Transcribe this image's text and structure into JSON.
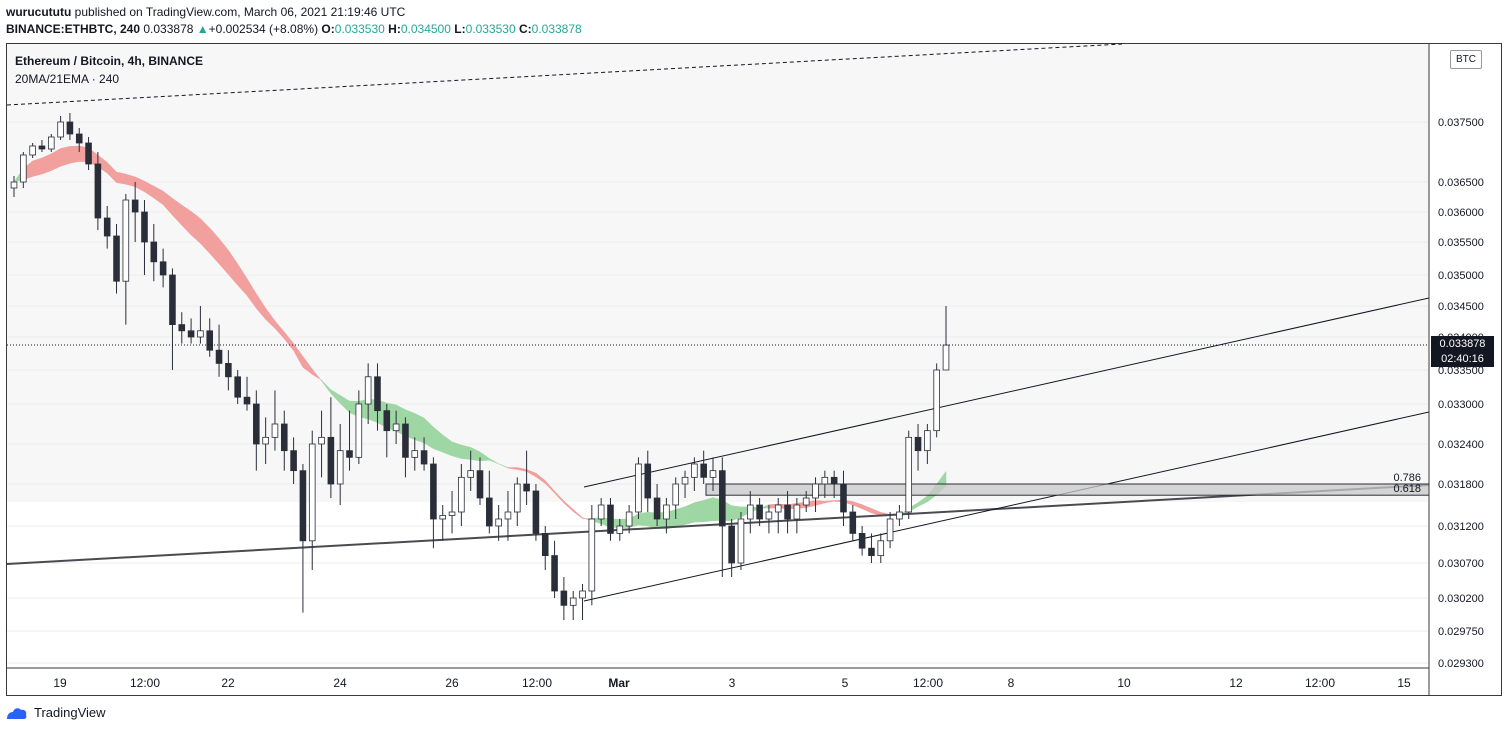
{
  "header": {
    "author": "wurucututu",
    "published_text": "published on TradingView.com, March 06, 2021 21:19:46 UTC",
    "symbol": "BINANCE:ETHBTC, 240",
    "last": "0.033878",
    "change": "+0.002534 (+8.08%)",
    "o_label": "O:",
    "o_value": "0.033530",
    "h_label": "H:",
    "h_value": "0.034500",
    "l_label": "L:",
    "l_value": "0.033530",
    "c_label": "C:",
    "c_value": "0.033878"
  },
  "legend": {
    "title": "Ethereum / Bitcoin, 4h, BINANCE",
    "indicator": "20MA/21EMA · 240"
  },
  "currency_badge": "BTC",
  "price_tag": {
    "price": "0.033878",
    "countdown": "02:40:16"
  },
  "footer": {
    "brand": "TradingView"
  },
  "colors": {
    "up": "#26a69a",
    "bull_candle": "#ffffff",
    "bear_candle": "#2a2e39",
    "cloud_green": "#9fd7a4",
    "cloud_red": "#f2a09e",
    "zone": "#c8c8c8"
  },
  "chart_data": {
    "type": "candlestick",
    "x_tick_labels": [
      "19",
      "12:00",
      "22",
      "24",
      "26",
      "12:00",
      "Mar",
      "3",
      "5",
      "12:00",
      "8",
      "10",
      "12",
      "12:00",
      "15"
    ],
    "y_tick_labels": [
      "0.037500",
      "0.036500",
      "0.036000",
      "0.035500",
      "0.035000",
      "0.034500",
      "0.034000",
      "0.033500",
      "0.033000",
      "0.032400",
      "0.031800",
      "0.031200",
      "0.030700",
      "0.030200",
      "0.029750",
      "0.029300"
    ],
    "y_tick_values": [
      0.0375,
      0.0365,
      0.036,
      0.0355,
      0.035,
      0.0345,
      0.034,
      0.0335,
      0.033,
      0.0324,
      0.0318,
      0.0312,
      0.0307,
      0.0302,
      0.02975,
      0.0293
    ],
    "fib_levels": [
      {
        "label": "0.786",
        "price": 0.0318
      },
      {
        "label": "0.618",
        "price": 0.03164
      }
    ],
    "current_price": 0.033878,
    "candles": [
      [
        0.0364,
        0.0366,
        0.03625,
        0.0365
      ],
      [
        0.0365,
        0.037,
        0.0364,
        0.03695
      ],
      [
        0.03695,
        0.03715,
        0.0369,
        0.0371
      ],
      [
        0.0371,
        0.0372,
        0.037,
        0.03705
      ],
      [
        0.03705,
        0.0373,
        0.037,
        0.03725
      ],
      [
        0.03725,
        0.0376,
        0.0372,
        0.0375
      ],
      [
        0.0375,
        0.03765,
        0.0372,
        0.0373
      ],
      [
        0.0373,
        0.0374,
        0.037,
        0.03715
      ],
      [
        0.03715,
        0.03725,
        0.0367,
        0.0368
      ],
      [
        0.0368,
        0.037,
        0.0357,
        0.0359
      ],
      [
        0.0359,
        0.0361,
        0.0354,
        0.0356
      ],
      [
        0.0356,
        0.0358,
        0.0347,
        0.0349
      ],
      [
        0.0349,
        0.0363,
        0.0342,
        0.0362
      ],
      [
        0.0362,
        0.0365,
        0.0355,
        0.036
      ],
      [
        0.036,
        0.0362,
        0.035,
        0.0355
      ],
      [
        0.0355,
        0.0358,
        0.0349,
        0.0352
      ],
      [
        0.0352,
        0.0354,
        0.0348,
        0.035
      ],
      [
        0.035,
        0.0351,
        0.0335,
        0.0342
      ],
      [
        0.0342,
        0.0344,
        0.0339,
        0.0341
      ],
      [
        0.0341,
        0.0343,
        0.0339,
        0.034
      ],
      [
        0.034,
        0.0345,
        0.0339,
        0.0341
      ],
      [
        0.0341,
        0.0343,
        0.0337,
        0.0338
      ],
      [
        0.0338,
        0.0342,
        0.0334,
        0.0336
      ],
      [
        0.0336,
        0.0338,
        0.0332,
        0.0334
      ],
      [
        0.0334,
        0.0335,
        0.033,
        0.0331
      ],
      [
        0.0331,
        0.0334,
        0.0329,
        0.033
      ],
      [
        0.033,
        0.0332,
        0.032,
        0.0324
      ],
      [
        0.0324,
        0.0328,
        0.0321,
        0.0325
      ],
      [
        0.0325,
        0.0332,
        0.0323,
        0.0327
      ],
      [
        0.0327,
        0.0329,
        0.032,
        0.0323
      ],
      [
        0.0323,
        0.0325,
        0.0318,
        0.032
      ],
      [
        0.032,
        0.0321,
        0.03,
        0.031
      ],
      [
        0.031,
        0.0326,
        0.0306,
        0.0324
      ],
      [
        0.0324,
        0.0329,
        0.0319,
        0.0325
      ],
      [
        0.0325,
        0.0331,
        0.0316,
        0.0318
      ],
      [
        0.0318,
        0.0327,
        0.0315,
        0.0323
      ],
      [
        0.0323,
        0.0329,
        0.032,
        0.0322
      ],
      [
        0.0322,
        0.0332,
        0.0321,
        0.033
      ],
      [
        0.033,
        0.0336,
        0.0327,
        0.0334
      ],
      [
        0.0334,
        0.0336,
        0.0326,
        0.0329
      ],
      [
        0.0329,
        0.033,
        0.0322,
        0.0326
      ],
      [
        0.0326,
        0.0329,
        0.0324,
        0.0327
      ],
      [
        0.0327,
        0.0328,
        0.0319,
        0.0322
      ],
      [
        0.0322,
        0.0325,
        0.032,
        0.0323
      ],
      [
        0.0323,
        0.0325,
        0.032,
        0.0321
      ],
      [
        0.0321,
        0.0322,
        0.0309,
        0.0313
      ],
      [
        0.0313,
        0.0315,
        0.031,
        0.03135
      ],
      [
        0.03135,
        0.0317,
        0.0311,
        0.0314
      ],
      [
        0.0314,
        0.0321,
        0.0312,
        0.0319
      ],
      [
        0.0319,
        0.0323,
        0.0317,
        0.032
      ],
      [
        0.032,
        0.0322,
        0.0315,
        0.0316
      ],
      [
        0.0316,
        0.032,
        0.0311,
        0.0312
      ],
      [
        0.0312,
        0.0315,
        0.031,
        0.0313
      ],
      [
        0.0313,
        0.0317,
        0.031,
        0.0314
      ],
      [
        0.0314,
        0.0319,
        0.0312,
        0.0318
      ],
      [
        0.0318,
        0.0323,
        0.0315,
        0.0317
      ],
      [
        0.0317,
        0.0318,
        0.031,
        0.0311
      ],
      [
        0.0311,
        0.0312,
        0.0306,
        0.0308
      ],
      [
        0.0308,
        0.031,
        0.0302,
        0.0303
      ],
      [
        0.0303,
        0.0305,
        0.0299,
        0.0301
      ],
      [
        0.0301,
        0.0303,
        0.0299,
        0.0302
      ],
      [
        0.0302,
        0.0304,
        0.0299,
        0.0303
      ],
      [
        0.0303,
        0.0315,
        0.0301,
        0.0313
      ],
      [
        0.0313,
        0.0316,
        0.0312,
        0.0315
      ],
      [
        0.0315,
        0.0316,
        0.031,
        0.0311
      ],
      [
        0.0311,
        0.0313,
        0.031,
        0.0312
      ],
      [
        0.0312,
        0.0315,
        0.0311,
        0.0314
      ],
      [
        0.0314,
        0.0322,
        0.0313,
        0.0321
      ],
      [
        0.0321,
        0.0323,
        0.0314,
        0.0316
      ],
      [
        0.0316,
        0.0318,
        0.0312,
        0.0313
      ],
      [
        0.0313,
        0.0316,
        0.0311,
        0.0315
      ],
      [
        0.0315,
        0.0319,
        0.0313,
        0.0318
      ],
      [
        0.0318,
        0.032,
        0.0316,
        0.0319
      ],
      [
        0.0319,
        0.0322,
        0.0317,
        0.0321
      ],
      [
        0.0321,
        0.0323,
        0.0318,
        0.0319
      ],
      [
        0.0319,
        0.0322,
        0.0317,
        0.032
      ],
      [
        0.032,
        0.0322,
        0.0305,
        0.0312
      ],
      [
        0.0312,
        0.0313,
        0.0305,
        0.0307
      ],
      [
        0.0307,
        0.0314,
        0.0306,
        0.0313
      ],
      [
        0.0313,
        0.0317,
        0.0311,
        0.0315
      ],
      [
        0.0315,
        0.0316,
        0.0312,
        0.0313
      ],
      [
        0.0313,
        0.0315,
        0.0311,
        0.0314
      ],
      [
        0.0314,
        0.0316,
        0.0311,
        0.0315
      ],
      [
        0.0315,
        0.0317,
        0.0311,
        0.0313
      ],
      [
        0.0313,
        0.0316,
        0.0311,
        0.0315
      ],
      [
        0.0315,
        0.0317,
        0.0314,
        0.0316
      ],
      [
        0.0316,
        0.0319,
        0.0314,
        0.0318
      ],
      [
        0.0318,
        0.032,
        0.0316,
        0.0319
      ],
      [
        0.0319,
        0.032,
        0.0316,
        0.0318
      ],
      [
        0.0318,
        0.032,
        0.0312,
        0.0314
      ],
      [
        0.0314,
        0.0315,
        0.031,
        0.0311
      ],
      [
        0.0311,
        0.0312,
        0.0308,
        0.0309
      ],
      [
        0.0309,
        0.0311,
        0.0307,
        0.0308
      ],
      [
        0.0308,
        0.0311,
        0.0307,
        0.031
      ],
      [
        0.031,
        0.0314,
        0.0309,
        0.0313
      ],
      [
        0.0313,
        0.0315,
        0.0312,
        0.0314
      ],
      [
        0.0314,
        0.0326,
        0.0313,
        0.0325
      ],
      [
        0.0325,
        0.0327,
        0.032,
        0.0323
      ],
      [
        0.0323,
        0.0327,
        0.0321,
        0.0326
      ],
      [
        0.0326,
        0.0336,
        0.0325,
        0.0335
      ],
      [
        0.0335,
        0.0345,
        0.0335,
        0.033878
      ]
    ]
  }
}
